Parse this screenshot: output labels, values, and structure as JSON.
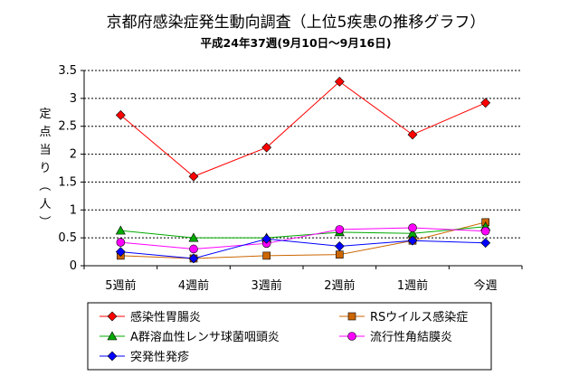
{
  "chart_data": {
    "type": "line",
    "title": "京都府感染症発生動向調査（上位5疾患の推移グラフ）",
    "subtitle": "平成24年37週(9月10日～9月16日)",
    "ylabel": "定点当り（人）",
    "xlabel": "",
    "categories": [
      "5週前",
      "4週前",
      "3週前",
      "2週前",
      "1週前",
      "今週"
    ],
    "ylim": [
      0,
      3.5
    ],
    "yticks": [
      0,
      0.5,
      1,
      1.5,
      2,
      2.5,
      3,
      3.5
    ],
    "ytick_labels": [
      "0",
      "0.5",
      "1",
      "1.5",
      "2",
      "2.5",
      "3",
      "3.5"
    ],
    "grid": true,
    "legend_position": "bottom",
    "series": [
      {
        "name": "感染性胃腸炎",
        "color": "#ff0000",
        "marker": "diamond",
        "values": [
          2.7,
          1.6,
          2.12,
          3.3,
          2.35,
          2.92
        ]
      },
      {
        "name": "RSウイルス感染症",
        "color": "#cc6600",
        "marker": "square",
        "values": [
          0.18,
          0.13,
          0.18,
          0.2,
          0.45,
          0.78
        ]
      },
      {
        "name": "A群溶血性レンサ球菌咽頭炎",
        "color": "#00aa00",
        "marker": "triangle",
        "values": [
          0.63,
          0.5,
          0.5,
          0.6,
          0.58,
          0.7
        ]
      },
      {
        "name": "流行性角結膜炎",
        "color": "#ff00ff",
        "marker": "circle",
        "values": [
          0.42,
          0.3,
          0.4,
          0.65,
          0.68,
          0.62
        ]
      },
      {
        "name": "突発性発疹",
        "color": "#0000ff",
        "marker": "diamond",
        "values": [
          0.25,
          0.13,
          0.48,
          0.35,
          0.45,
          0.41
        ]
      }
    ]
  }
}
